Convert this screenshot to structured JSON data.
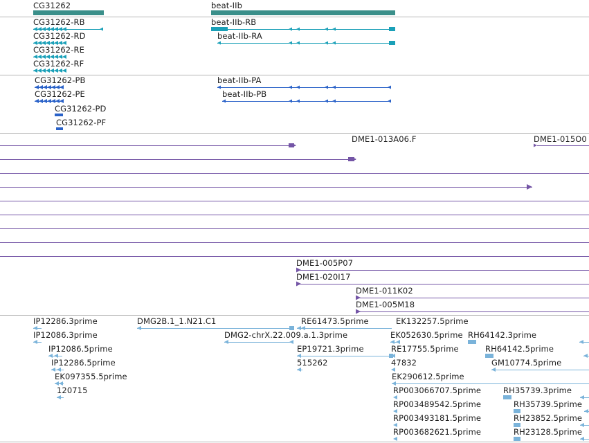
{
  "colors": {
    "gene": "#3a8f8a",
    "transcript": "#1aa0b8",
    "protein": "#2a62c8",
    "clone": "#7455a6",
    "est": "#7ab3da",
    "divider": "#b4b4b4"
  },
  "tracks": {
    "genes": [
      {
        "label": "CG31262"
      },
      {
        "label": "beat-IIb"
      }
    ],
    "transcripts": [
      {
        "label": "CG31262-RB"
      },
      {
        "label": "CG31262-RD"
      },
      {
        "label": "CG31262-RE"
      },
      {
        "label": "CG31262-RF"
      },
      {
        "label": "beat-IIb-RB"
      },
      {
        "label": "beat-IIb-RA"
      }
    ],
    "proteins": [
      {
        "label": "CG31262-PB"
      },
      {
        "label": "CG31262-PE"
      },
      {
        "label": "CG31262-PD"
      },
      {
        "label": "CG31262-PF"
      },
      {
        "label": "beat-IIb-PA"
      },
      {
        "label": "beat-IIb-PB"
      }
    ],
    "clones": [
      {
        "label": "DME1-013A06.F"
      },
      {
        "label": "DME1-015O0"
      },
      {
        "label": "DME1-005P07"
      },
      {
        "label": "DME1-020I17"
      },
      {
        "label": "DME1-011K02"
      },
      {
        "label": "DME1-005M18"
      }
    ],
    "ests": [
      {
        "label": "IP12286.3prime"
      },
      {
        "label": "IP12086.3prime"
      },
      {
        "label": "IP12086.5prime"
      },
      {
        "label": "IP12286.5prime"
      },
      {
        "label": "EK097355.5prime"
      },
      {
        "label": "120715"
      },
      {
        "label": "DMG2B.1_1.N21.C1"
      },
      {
        "label": "DMG2-chrX.22.009.a.1.3prime"
      },
      {
        "label": "RE61473.5prime"
      },
      {
        "label": "EP19721.3prime"
      },
      {
        "label": "515262"
      },
      {
        "label": "EK132257.5prime"
      },
      {
        "label": "EK052630.5prime"
      },
      {
        "label": "RE17755.5prime"
      },
      {
        "label": "47832"
      },
      {
        "label": "EK290612.5prime"
      },
      {
        "label": "RP003066707.5prime"
      },
      {
        "label": "RP003489542.5prime"
      },
      {
        "label": "RP003493181.5prime"
      },
      {
        "label": "RP003682621.5prime"
      },
      {
        "label": "RH64142.3prime"
      },
      {
        "label": "RH64142.5prime"
      },
      {
        "label": "GM10774.5prime"
      },
      {
        "label": "RH35739.3prime"
      },
      {
        "label": "RH35739.5prime"
      },
      {
        "label": "RH23852.5prime"
      },
      {
        "label": "RH23128.5prime"
      }
    ]
  }
}
